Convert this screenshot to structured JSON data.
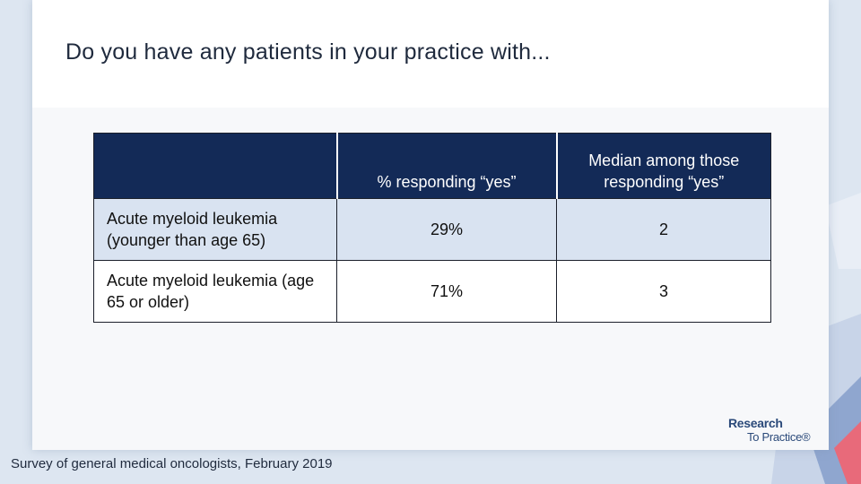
{
  "slide": {
    "title": "Do you have any patients in your practice with..."
  },
  "table": {
    "headers": [
      "",
      "% responding “yes”",
      "Median among those responding “yes”"
    ],
    "rows": [
      {
        "label": "Acute myeloid leukemia (younger than age 65)",
        "pct_yes": "29%",
        "median": "2"
      },
      {
        "label": "Acute myeloid leukemia (age 65 or older)",
        "pct_yes": "71%",
        "median": "3"
      }
    ]
  },
  "footnote": "Survey of general medical oncologists, February 2019",
  "logo": {
    "line1": "Research",
    "line2": "To Practice®"
  },
  "colors": {
    "header_bg": "#132a57",
    "row_highlight": "#d9e3f1",
    "title_text": "#1f2a3d",
    "logo_text": "#2b4a7a"
  }
}
